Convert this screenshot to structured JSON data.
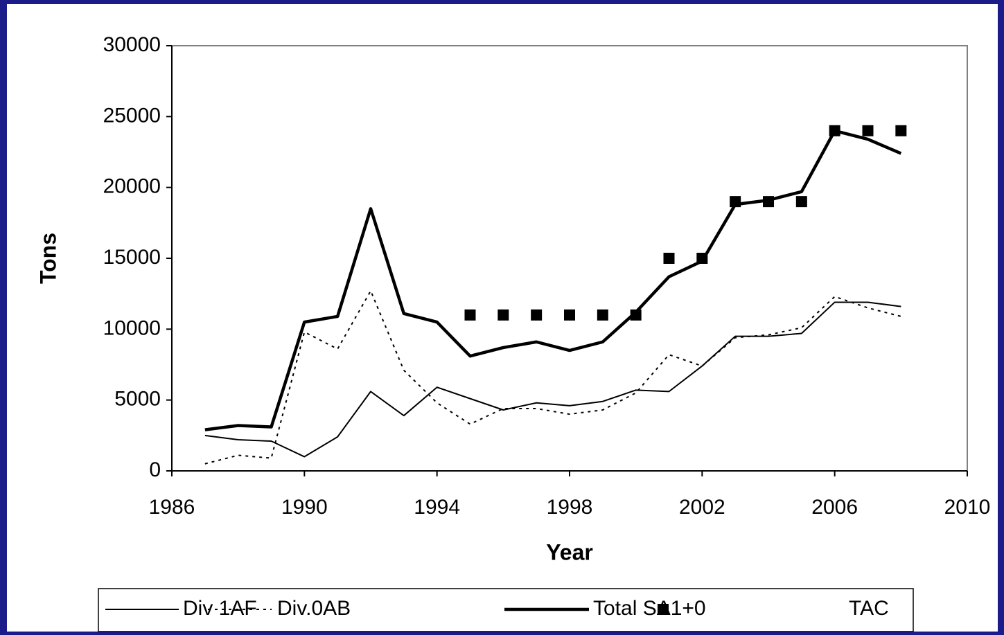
{
  "chart_data": {
    "type": "line",
    "x_label": "Year",
    "y_label": "Tons",
    "x": [
      1987,
      1988,
      1989,
      1990,
      1991,
      1992,
      1993,
      1994,
      1995,
      1996,
      1997,
      1998,
      1999,
      2000,
      2001,
      2002,
      2003,
      2004,
      2005,
      2006,
      2007,
      2008
    ],
    "series": [
      {
        "name": "Div 1AF",
        "color": "#000000",
        "style": "thin",
        "values": [
          2500,
          2200,
          2100,
          1000,
          2400,
          5600,
          3900,
          5900,
          5100,
          4300,
          4800,
          4600,
          4900,
          5700,
          5600,
          7400,
          9500,
          9500,
          9700,
          11900,
          11900,
          11600
        ]
      },
      {
        "name": "Div.0AB",
        "color": "#000000",
        "style": "dotted",
        "values": [
          500,
          1100,
          900,
          9800,
          8600,
          12700,
          7100,
          4800,
          3300,
          4400,
          4400,
          4000,
          4300,
          5500,
          8200,
          7400,
          9400,
          9600,
          10100,
          12300,
          11500,
          10900
        ]
      },
      {
        "name": "Total SA1+0",
        "color": "#000000",
        "style": "thick",
        "values": [
          2900,
          3200,
          3100,
          10500,
          10900,
          18500,
          11100,
          10500,
          8100,
          8700,
          9100,
          8500,
          9100,
          11200,
          13700,
          14800,
          18800,
          19100,
          19700,
          24000,
          23400,
          22400
        ]
      },
      {
        "name": "TAC",
        "color": "#000000",
        "style": "square",
        "values": [
          null,
          null,
          null,
          null,
          null,
          null,
          null,
          null,
          11000,
          11000,
          11000,
          11000,
          11000,
          11000,
          15000,
          15000,
          19000,
          19000,
          19000,
          24000,
          24000,
          24000
        ]
      }
    ],
    "xlim": [
      1986,
      2010
    ],
    "xticks": [
      1986,
      1990,
      1994,
      1998,
      2002,
      2006,
      2010
    ],
    "ylim": [
      0,
      30000
    ],
    "yticks": [
      0,
      5000,
      10000,
      15000,
      20000,
      25000,
      30000
    ],
    "grid": false,
    "legend": "bottom"
  }
}
